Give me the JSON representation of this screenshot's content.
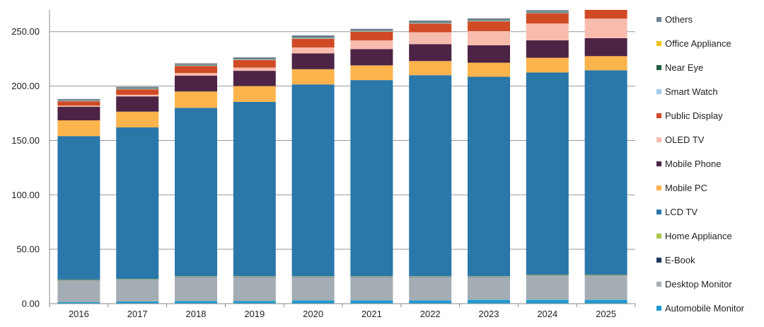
{
  "chart_data": {
    "type": "bar",
    "stacked": true,
    "title": "",
    "xlabel": "",
    "ylabel": "",
    "ylim": [
      0,
      270
    ],
    "y_ticks": [
      0,
      50,
      100,
      150,
      200,
      250
    ],
    "y_tick_labels": [
      "0.00",
      "50.00",
      "100.00",
      "150.00",
      "200.00",
      "250.00"
    ],
    "grid": "horizontal",
    "legend_position": "right",
    "categories": [
      "2016",
      "2017",
      "2018",
      "2019",
      "2020",
      "2021",
      "2022",
      "2023",
      "2024",
      "2025"
    ],
    "series": [
      {
        "name": "Automobile Monitor",
        "color": "#1f9bd1",
        "values": [
          1.5,
          2,
          2.5,
          2.5,
          3,
          3,
          3,
          3.5,
          3.5,
          3.5
        ]
      },
      {
        "name": "Desktop Monitor",
        "color": "#a4adb3",
        "values": [
          20,
          20,
          22,
          22,
          21.5,
          21.5,
          21.5,
          21,
          22.5,
          22.5
        ]
      },
      {
        "name": "E-Book",
        "color": "#1b3a5c",
        "values": [
          0.3,
          0.3,
          0.3,
          0.3,
          0.3,
          0.3,
          0.3,
          0.3,
          0.3,
          0.3
        ]
      },
      {
        "name": "Home Appliance",
        "color": "#a8c84a",
        "values": [
          0.4,
          0.4,
          0.4,
          0.4,
          0.4,
          0.4,
          0.4,
          0.4,
          0.4,
          0.4
        ]
      },
      {
        "name": "LCD TV",
        "color": "#2a77aa",
        "values": [
          131.8,
          139.3,
          154.8,
          160.3,
          176.3,
          180.3,
          184.8,
          183.3,
          185.8,
          187.8
        ]
      },
      {
        "name": "Mobile PC",
        "color": "#fbb44c",
        "values": [
          14.5,
          14.5,
          15,
          14.5,
          14,
          13.5,
          13,
          13,
          13.5,
          13
        ]
      },
      {
        "name": "Mobile Phone",
        "color": "#4d2446",
        "values": [
          12.5,
          14,
          14.5,
          14,
          14.5,
          15,
          15.5,
          16,
          16,
          16.5
        ]
      },
      {
        "name": "OLED TV",
        "color": "#f7bcae",
        "values": [
          1,
          1.5,
          2.5,
          3,
          5.5,
          8,
          11,
          13,
          15.5,
          18
        ]
      },
      {
        "name": "Public Display",
        "color": "#d04a25",
        "values": [
          4,
          5,
          6.5,
          7,
          8,
          8,
          8,
          9,
          9.5,
          9
        ]
      },
      {
        "name": "Smart Watch",
        "color": "#a6cce8",
        "values": [
          0.3,
          0.4,
          0.5,
          0.5,
          0.6,
          0.6,
          0.6,
          0.6,
          0.6,
          0.6
        ]
      },
      {
        "name": "Near Eye",
        "color": "#1f5f3f",
        "values": [
          0.2,
          0.3,
          0.3,
          0.3,
          0.4,
          0.4,
          0.5,
          0.5,
          0.6,
          0.6
        ]
      },
      {
        "name": "Office Appliance",
        "color": "#f0c419",
        "values": [
          0.1,
          0.1,
          0.1,
          0.1,
          0.1,
          0.1,
          0.1,
          0.1,
          0.1,
          0.1
        ]
      },
      {
        "name": "Others",
        "color": "#6f8191",
        "values": [
          1.5,
          1.5,
          1.5,
          1.5,
          2,
          1.5,
          1.5,
          1.5,
          1.5,
          1.5
        ]
      }
    ],
    "colors": {
      "axis": "#888888",
      "grid": "#999999"
    }
  }
}
